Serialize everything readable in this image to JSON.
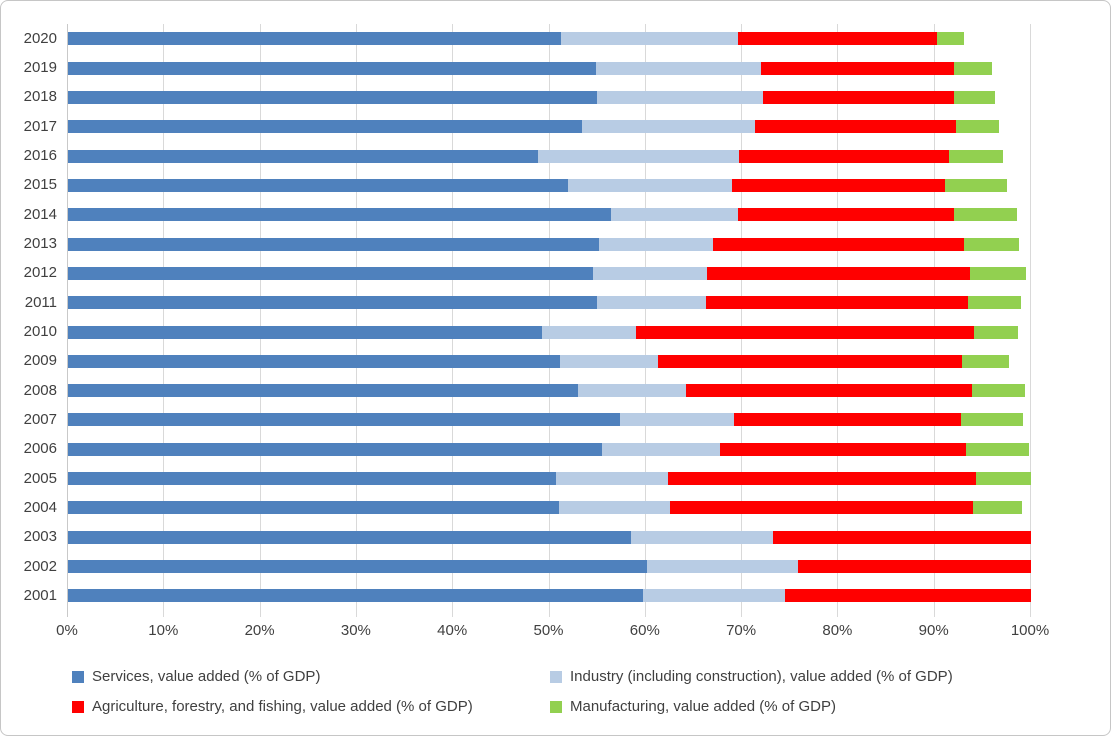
{
  "colors": {
    "gridline": "#d9d9d9",
    "axis_line": "#c9c9c9",
    "text": "#404040",
    "background": "#ffffff",
    "frame_border": "#c6c6c6"
  },
  "chart_data": {
    "type": "bar",
    "orientation": "horizontal",
    "stacked": true,
    "title": "",
    "xlabel": "",
    "ylabel": "",
    "grid": true,
    "legend_position": "bottom",
    "categories": [
      "2020",
      "2019",
      "2018",
      "2017",
      "2016",
      "2015",
      "2014",
      "2013",
      "2012",
      "2011",
      "2010",
      "2009",
      "2008",
      "2007",
      "2006",
      "2005",
      "2004",
      "2003",
      "2002",
      "2001"
    ],
    "series": [
      {
        "name": "Services, value added (% of GDP)",
        "color": "#4f81bd",
        "values": [
          51.2,
          54.8,
          54.9,
          53.4,
          48.8,
          51.9,
          56.4,
          55.1,
          54.5,
          54.9,
          49.2,
          51.1,
          53.0,
          57.3,
          55.5,
          50.7,
          51.0,
          58.5,
          60.1,
          59.7
        ]
      },
      {
        "name": "Industry (including construction), value added (% of GDP)",
        "color": "#b8cce4",
        "values": [
          18.4,
          17.2,
          17.3,
          17.9,
          20.9,
          17.1,
          13.2,
          11.9,
          11.9,
          11.4,
          9.8,
          10.2,
          11.2,
          11.9,
          12.2,
          11.6,
          11.5,
          14.7,
          15.7,
          14.8
        ]
      },
      {
        "name": "Agriculture, forestry, and fishing, value added (% of GDP)",
        "color": "#ff0000",
        "values": [
          20.6,
          20.0,
          19.8,
          20.9,
          21.8,
          22.1,
          22.4,
          26.0,
          27.3,
          27.2,
          35.1,
          31.5,
          29.7,
          23.5,
          25.5,
          32.0,
          31.5,
          26.8,
          24.2,
          25.5
        ]
      },
      {
        "name": "Manufacturing, value added (% of GDP)",
        "color": "#92d050",
        "values": [
          2.8,
          3.9,
          4.3,
          4.5,
          5.6,
          6.4,
          6.5,
          5.8,
          5.8,
          5.5,
          4.5,
          4.9,
          5.5,
          6.5,
          6.6,
          5.7,
          5.1,
          0,
          0,
          0
        ]
      }
    ],
    "x_axis": {
      "min": 0,
      "max": 100,
      "tick_step": 10,
      "tick_labels": [
        "0%",
        "10%",
        "20%",
        "30%",
        "40%",
        "50%",
        "60%",
        "70%",
        "80%",
        "90%",
        "100%"
      ]
    }
  }
}
